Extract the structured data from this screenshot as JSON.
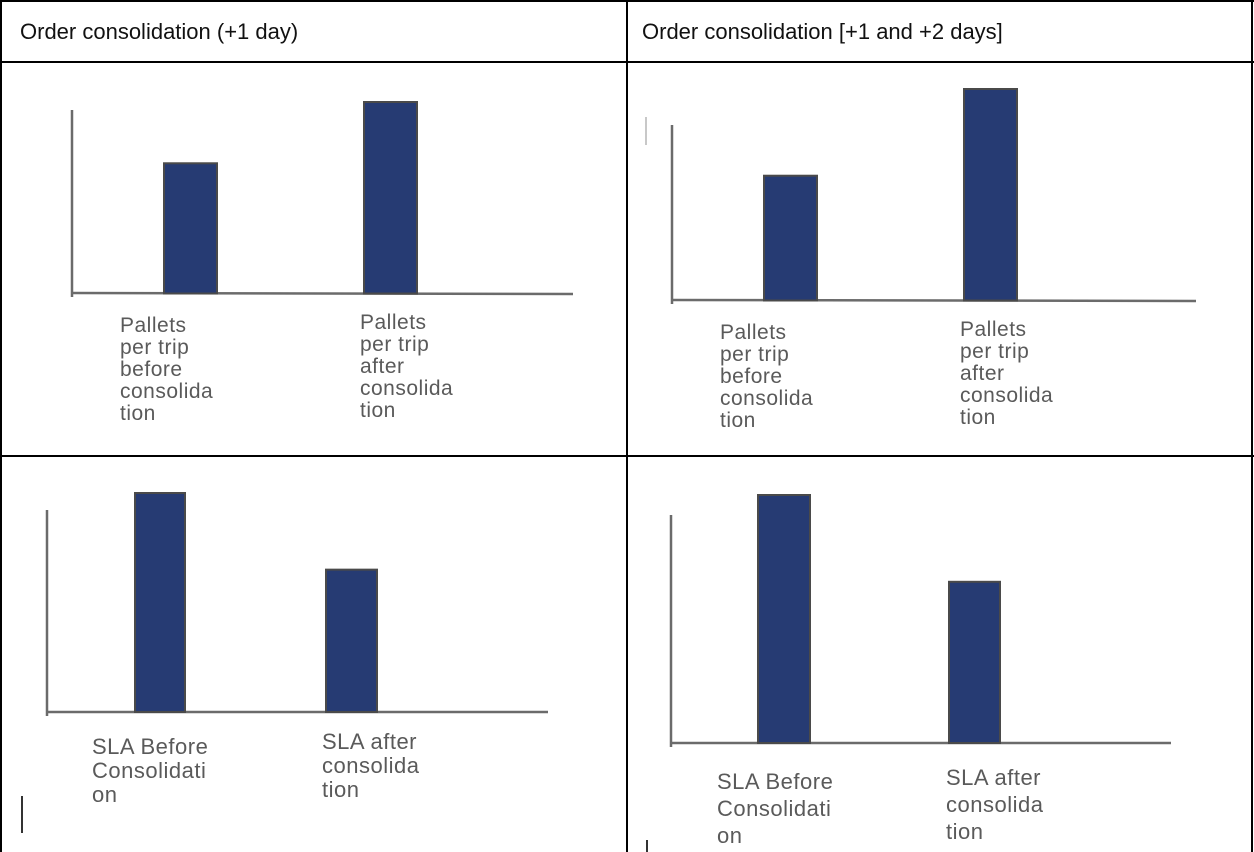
{
  "table": {
    "header_left": "Order consolidation (+1 day)",
    "header_right": "Order consolidation [+1 and +2 days]"
  },
  "chart_data": [
    {
      "type": "bar",
      "panel": "top-left",
      "categories": [
        "Pallets per trip before consolidation",
        "Pallets per trip after consolidation"
      ],
      "category_lines": [
        [
          "Pallets",
          "per trip",
          "before",
          "consolida",
          "tion"
        ],
        [
          "Pallets",
          "per trip",
          "after",
          "consolida",
          "tion"
        ]
      ],
      "values": [
        0.68,
        1.0
      ],
      "color": "#263b73",
      "xlabel": "",
      "ylabel": "",
      "grid": false
    },
    {
      "type": "bar",
      "panel": "top-right",
      "categories": [
        "Pallets per trip before consolidation",
        "Pallets per trip after consolidation"
      ],
      "category_lines": [
        [
          "Pallets",
          "per trip",
          "before",
          "consolida",
          "tion"
        ],
        [
          "Pallets",
          "per trip",
          "after",
          "consolida",
          "tion"
        ]
      ],
      "values": [
        0.59,
        1.0
      ],
      "color": "#263b73",
      "xlabel": "",
      "ylabel": "",
      "grid": false
    },
    {
      "type": "bar",
      "panel": "bottom-left",
      "categories": [
        "SLA Before Consolidation",
        "SLA after consolidation"
      ],
      "category_lines": [
        [
          "SLA Before",
          "Consolidati",
          "on"
        ],
        [
          "SLA after",
          "consolida",
          "tion"
        ]
      ],
      "values": [
        1.0,
        0.65
      ],
      "color": "#263b73",
      "xlabel": "",
      "ylabel": "",
      "grid": false
    },
    {
      "type": "bar",
      "panel": "bottom-right",
      "categories": [
        "SLA Before Consolidation",
        "SLA after consolidation"
      ],
      "category_lines": [
        [
          "SLA Before",
          "Consolidati",
          "on"
        ],
        [
          "SLA after",
          "consolida",
          "tion"
        ]
      ],
      "values": [
        1.0,
        0.65
      ],
      "color": "#263b73",
      "xlabel": "",
      "ylabel": "",
      "grid": false
    }
  ]
}
